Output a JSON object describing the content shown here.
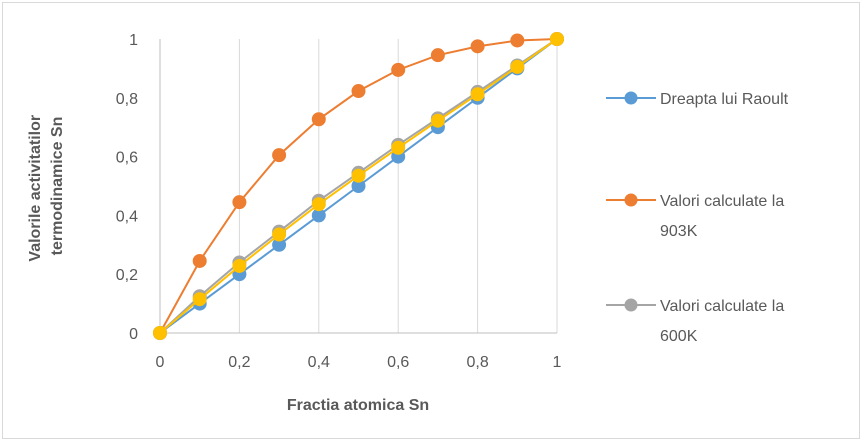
{
  "chart_data": {
    "type": "line",
    "title": "",
    "xlabel": "Fractia atomica Sn",
    "ylabel_lines": [
      "Valorile activitatilor",
      "termodinamice Sn"
    ],
    "x": [
      0,
      0.1,
      0.2,
      0.3,
      0.4,
      0.5,
      0.6,
      0.7,
      0.8,
      0.9,
      1
    ],
    "xlim": [
      0,
      1
    ],
    "ylim": [
      0,
      1
    ],
    "x_ticks": [
      0,
      0.2,
      0.4,
      0.6,
      0.8,
      1
    ],
    "x_tick_labels": [
      "0",
      "0,2",
      "0,4",
      "0,6",
      "0,8",
      "1"
    ],
    "y_ticks": [
      0,
      0.2,
      0.4,
      0.6,
      0.8,
      1
    ],
    "y_tick_labels": [
      "0",
      "0,2",
      "0,4",
      "0,6",
      "0,8",
      "1"
    ],
    "grid": "vertical",
    "legend_position": "right",
    "series": [
      {
        "name": "Dreapta lui Raoult",
        "legend_lines": [
          "Dreapta lui Raoult"
        ],
        "color": "#5b9bd5",
        "values": [
          0,
          0.1,
          0.2,
          0.3,
          0.4,
          0.5,
          0.6,
          0.7,
          0.8,
          0.9,
          1
        ]
      },
      {
        "name": "Valori calculate la 903K",
        "legend_lines": [
          "Valori calculate la",
          "903K"
        ],
        "color": "#ed7d31",
        "values": [
          0,
          0.245,
          0.445,
          0.605,
          0.727,
          0.823,
          0.895,
          0.945,
          0.975,
          0.995,
          1
        ]
      },
      {
        "name": "Valori calculate la 600K",
        "legend_lines": [
          "Valori calculate la",
          "600K"
        ],
        "color": "#a5a5a5",
        "values": [
          0,
          0.125,
          0.24,
          0.345,
          0.45,
          0.545,
          0.64,
          0.73,
          0.82,
          0.91,
          1
        ]
      },
      {
        "name": "",
        "legend_lines": [],
        "color": "#ffc000",
        "values": [
          0,
          0.115,
          0.228,
          0.335,
          0.438,
          0.535,
          0.63,
          0.722,
          0.812,
          0.905,
          1
        ]
      }
    ]
  }
}
